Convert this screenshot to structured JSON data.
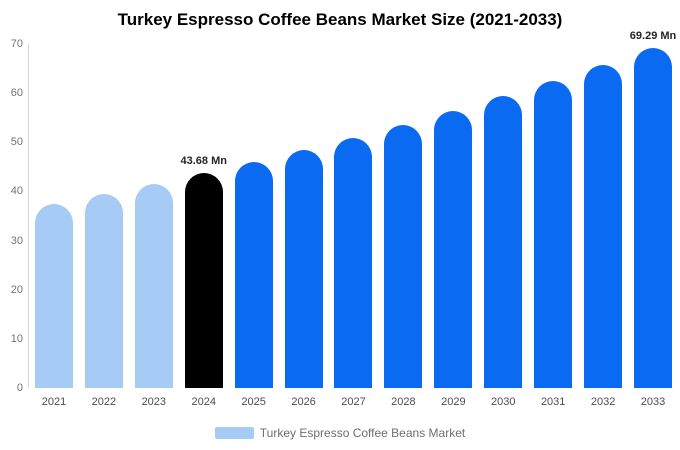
{
  "page": {
    "background": "#ffffff"
  },
  "chart_data": {
    "type": "bar",
    "title": "Turkey Espresso Coffee Beans Market Size (2021-2033)",
    "value_unit": "Mn",
    "categories": [
      "2021",
      "2022",
      "2023",
      "2024",
      "2025",
      "2026",
      "2027",
      "2028",
      "2029",
      "2030",
      "2031",
      "2032",
      "2033"
    ],
    "values": [
      37.4,
      39.4,
      41.5,
      43.68,
      45.98,
      48.4,
      50.94,
      53.62,
      56.44,
      59.41,
      62.53,
      65.82,
      69.29
    ],
    "bar_groups": [
      "historical",
      "historical",
      "historical",
      "base_year",
      "forecast",
      "forecast",
      "forecast",
      "forecast",
      "forecast",
      "forecast",
      "forecast",
      "forecast",
      "forecast"
    ],
    "annotations": [
      {
        "category": "2024",
        "text": "43.68 Mn"
      },
      {
        "category": "2033",
        "text": "69.29 Mn"
      }
    ],
    "xlabel": "",
    "ylabel": "",
    "ylim": [
      0,
      70
    ],
    "yticks": [
      0,
      10,
      20,
      30,
      40,
      50,
      60,
      70
    ],
    "grid": false,
    "legend_position": "bottom",
    "legend": [
      {
        "label": "Turkey Espresso Coffee Beans Market",
        "color": "#a6cbf4"
      }
    ],
    "colors": {
      "historical": "#a6cbf4",
      "base_year": "#000000",
      "forecast": "#0a6af2",
      "axis_line": "#d6d6d6",
      "ytick_text": "#737373",
      "xtick_text": "#4d4d4d",
      "annotation_text": "#262626",
      "legend_text": "#6e6e6e"
    }
  }
}
